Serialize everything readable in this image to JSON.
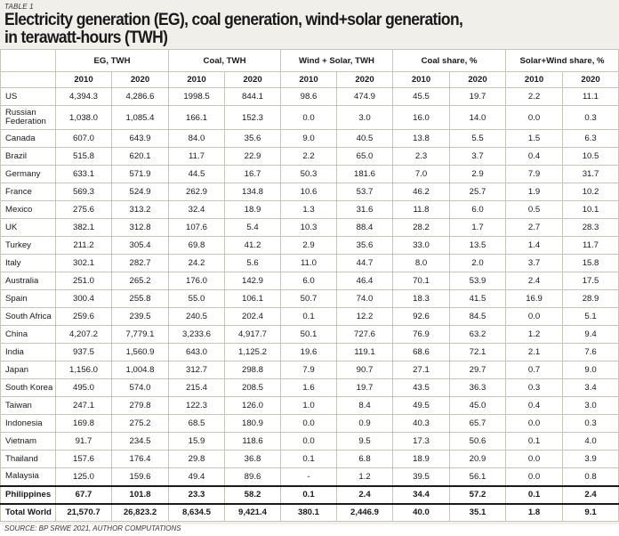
{
  "label": "TABLE 1",
  "title_line1": "Electricity generation (EG), coal generation, wind+solar generation,",
  "title_line2": "in terawatt-hours (TWH)",
  "groups": [
    "EG, TWH",
    "Coal, TWH",
    "Wind + Solar, TWH",
    "Coal share, %",
    "Solar+Wind share, %"
  ],
  "years": [
    "2010",
    "2020",
    "2010",
    "2020",
    "2010",
    "2020",
    "2010",
    "2020",
    "2010",
    "2020"
  ],
  "rows": [
    {
      "country": "US",
      "v": [
        "4,394.3",
        "4,286.6",
        "1998.5",
        "844.1",
        "98.6",
        "474.9",
        "45.5",
        "19.7",
        "2.2",
        "11.1"
      ]
    },
    {
      "country": "Russian Federation",
      "v": [
        "1,038.0",
        "1,085.4",
        "166.1",
        "152.3",
        "0.0",
        "3.0",
        "16.0",
        "14.0",
        "0.0",
        "0.3"
      ]
    },
    {
      "country": "Canada",
      "v": [
        "607.0",
        "643.9",
        "84.0",
        "35.6",
        "9.0",
        "40.5",
        "13.8",
        "5.5",
        "1.5",
        "6.3"
      ]
    },
    {
      "country": "Brazil",
      "v": [
        "515.8",
        "620.1",
        "11.7",
        "22.9",
        "2.2",
        "65.0",
        "2.3",
        "3.7",
        "0.4",
        "10.5"
      ]
    },
    {
      "country": "Germany",
      "v": [
        "633.1",
        "571.9",
        "44.5",
        "16.7",
        "50.3",
        "181.6",
        "7.0",
        "2.9",
        "7.9",
        "31.7"
      ]
    },
    {
      "country": "France",
      "v": [
        "569.3",
        "524.9",
        "262.9",
        "134.8",
        "10.6",
        "53.7",
        "46.2",
        "25.7",
        "1.9",
        "10.2"
      ]
    },
    {
      "country": "Mexico",
      "v": [
        "275.6",
        "313.2",
        "32.4",
        "18.9",
        "1.3",
        "31.6",
        "11.8",
        "6.0",
        "0.5",
        "10.1"
      ]
    },
    {
      "country": "UK",
      "v": [
        "382.1",
        "312.8",
        "107.6",
        "5.4",
        "10.3",
        "88.4",
        "28.2",
        "1.7",
        "2.7",
        "28.3"
      ]
    },
    {
      "country": "Turkey",
      "v": [
        "211.2",
        "305.4",
        "69.8",
        "41.2",
        "2.9",
        "35.6",
        "33.0",
        "13.5",
        "1.4",
        "11.7"
      ]
    },
    {
      "country": "Italy",
      "v": [
        "302.1",
        "282.7",
        "24.2",
        "5.6",
        "11.0",
        "44.7",
        "8.0",
        "2.0",
        "3.7",
        "15.8"
      ]
    },
    {
      "country": "Australia",
      "v": [
        "251.0",
        "265.2",
        "176.0",
        "142.9",
        "6.0",
        "46.4",
        "70.1",
        "53.9",
        "2.4",
        "17.5"
      ]
    },
    {
      "country": "Spain",
      "v": [
        "300.4",
        "255.8",
        "55.0",
        "106.1",
        "50.7",
        "74.0",
        "18.3",
        "41.5",
        "16.9",
        "28.9"
      ]
    },
    {
      "country": "South Africa",
      "v": [
        "259.6",
        "239.5",
        "240.5",
        "202.4",
        "0.1",
        "12.2",
        "92.6",
        "84.5",
        "0.0",
        "5.1"
      ]
    },
    {
      "country": "China",
      "v": [
        "4,207.2",
        "7,779.1",
        "3,233.6",
        "4,917.7",
        "50.1",
        "727.6",
        "76.9",
        "63.2",
        "1.2",
        "9.4"
      ]
    },
    {
      "country": "India",
      "v": [
        "937.5",
        "1,560.9",
        "643.0",
        "1,125.2",
        "19.6",
        "119.1",
        "68.6",
        "72.1",
        "2.1",
        "7.6"
      ]
    },
    {
      "country": "Japan",
      "v": [
        "1,156.0",
        "1,004.8",
        "312.7",
        "298.8",
        "7.9",
        "90.7",
        "27.1",
        "29.7",
        "0.7",
        "9.0"
      ]
    },
    {
      "country": "South Korea",
      "v": [
        "495.0",
        "574.0",
        "215.4",
        "208.5",
        "1.6",
        "19.7",
        "43.5",
        "36.3",
        "0.3",
        "3.4"
      ]
    },
    {
      "country": "Taiwan",
      "v": [
        "247.1",
        "279.8",
        "122.3",
        "126.0",
        "1.0",
        "8.4",
        "49.5",
        "45.0",
        "0.4",
        "3.0"
      ]
    },
    {
      "country": "Indonesia",
      "v": [
        "169.8",
        "275.2",
        "68.5",
        "180.9",
        "0.0",
        "0.9",
        "40.3",
        "65.7",
        "0.0",
        "0.3"
      ]
    },
    {
      "country": "Vietnam",
      "v": [
        "91.7",
        "234.5",
        "15.9",
        "118.6",
        "0.0",
        "9.5",
        "17.3",
        "50.6",
        "0.1",
        "4.0"
      ]
    },
    {
      "country": "Thailand",
      "v": [
        "157.6",
        "176.4",
        "29.8",
        "36.8",
        "0.1",
        "6.8",
        "18.9",
        "20.9",
        "0.0",
        "3.9"
      ]
    },
    {
      "country": "Malaysia",
      "v": [
        "125.0",
        "159.6",
        "49.4",
        "89.6",
        "-",
        "1.2",
        "39.5",
        "56.1",
        "0.0",
        "0.8"
      ]
    },
    {
      "country": "Philippines",
      "v": [
        "67.7",
        "101.8",
        "23.3",
        "58.2",
        "0.1",
        "2.4",
        "34.4",
        "57.2",
        "0.1",
        "2.4"
      ]
    },
    {
      "country": "Total World",
      "v": [
        "21,570.7",
        "26,823.2",
        "8,634.5",
        "9,421.4",
        "380.1",
        "2,446.9",
        "40.0",
        "35.1",
        "1.8",
        "9.1"
      ]
    }
  ],
  "source": "SOURCE: BP SRWE 2021, AUTHOR COMPUTATIONS"
}
